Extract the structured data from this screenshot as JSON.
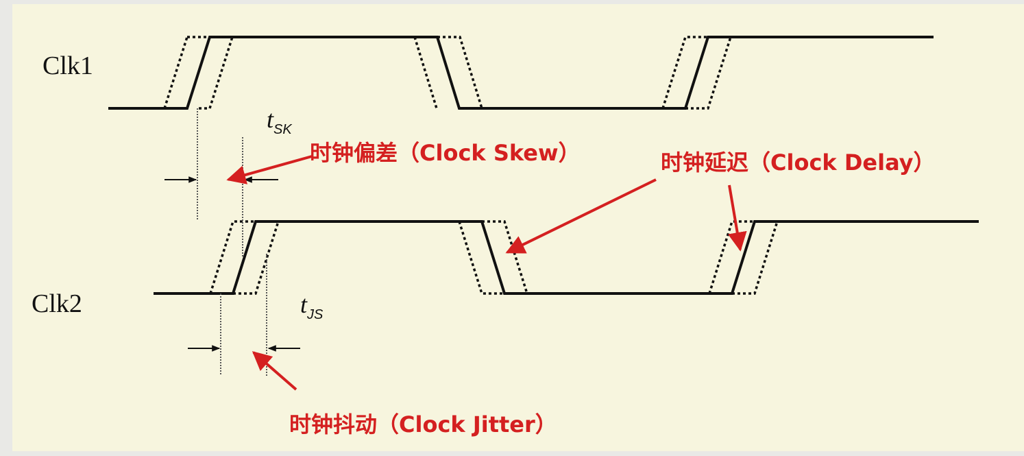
{
  "signals": {
    "clk1": "Clk1",
    "clk2": "Clk2"
  },
  "timing_labels": {
    "skew": {
      "symbol": "t",
      "subscript": "SK"
    },
    "jitter": {
      "symbol": "t",
      "subscript": "JS"
    }
  },
  "annotations": {
    "clock_skew": "时钟偏差（Clock Skew）",
    "clock_delay": "时钟延迟（Clock Delay）",
    "clock_jitter": "时钟抖动（Clock Jitter）"
  },
  "colors": {
    "background": "#f7f5de",
    "waveform": "#111111",
    "annotation": "#d42020"
  }
}
